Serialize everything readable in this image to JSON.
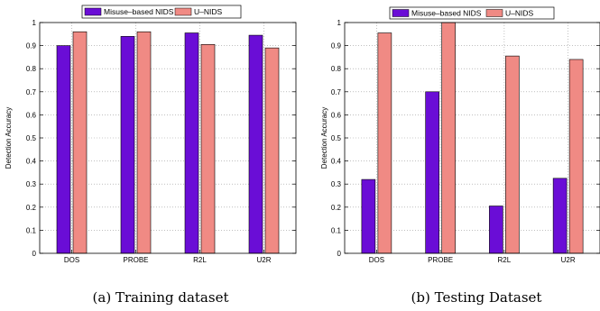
{
  "colors": {
    "misuse": "#6a0dd6",
    "unids": "#f08a84",
    "grid": "#9a9a9a",
    "axis": "#000000"
  },
  "chart_data": [
    {
      "type": "bar",
      "caption": "(a) Training dataset",
      "ylabel": "Detection Accuracy",
      "xlabel": "",
      "categories": [
        "DOS",
        "PROBE",
        "R2L",
        "U2R"
      ],
      "ylim": [
        0,
        1
      ],
      "yticks": [
        "0",
        "0.1",
        "0.2",
        "0.3",
        "0.4",
        "0.5",
        "0.6",
        "0.7",
        "0.8",
        "0.9",
        "1"
      ],
      "grid": true,
      "legend_position": "top",
      "series": [
        {
          "name": "Misuse–based NIDS",
          "values": [
            0.9,
            0.94,
            0.955,
            0.945
          ]
        },
        {
          "name": "U–NIDS",
          "values": [
            0.96,
            0.96,
            0.905,
            0.89
          ]
        }
      ]
    },
    {
      "type": "bar",
      "caption": "(b) Testing Dataset",
      "ylabel": "Detection Accuracy",
      "xlabel": "",
      "categories": [
        "DOS",
        "PROBE",
        "R2L",
        "U2R"
      ],
      "ylim": [
        0,
        1
      ],
      "yticks": [
        "0",
        "0.1",
        "0.2",
        "0.3",
        "0.4",
        "0.5",
        "0.6",
        "0.7",
        "0.8",
        "0.9",
        "1"
      ],
      "grid": true,
      "legend_position": "top",
      "series": [
        {
          "name": "Misuse–based NIDS",
          "values": [
            0.32,
            0.7,
            0.205,
            0.325
          ]
        },
        {
          "name": "U–NIDS",
          "values": [
            0.955,
            1.0,
            0.855,
            0.84
          ]
        }
      ]
    }
  ]
}
